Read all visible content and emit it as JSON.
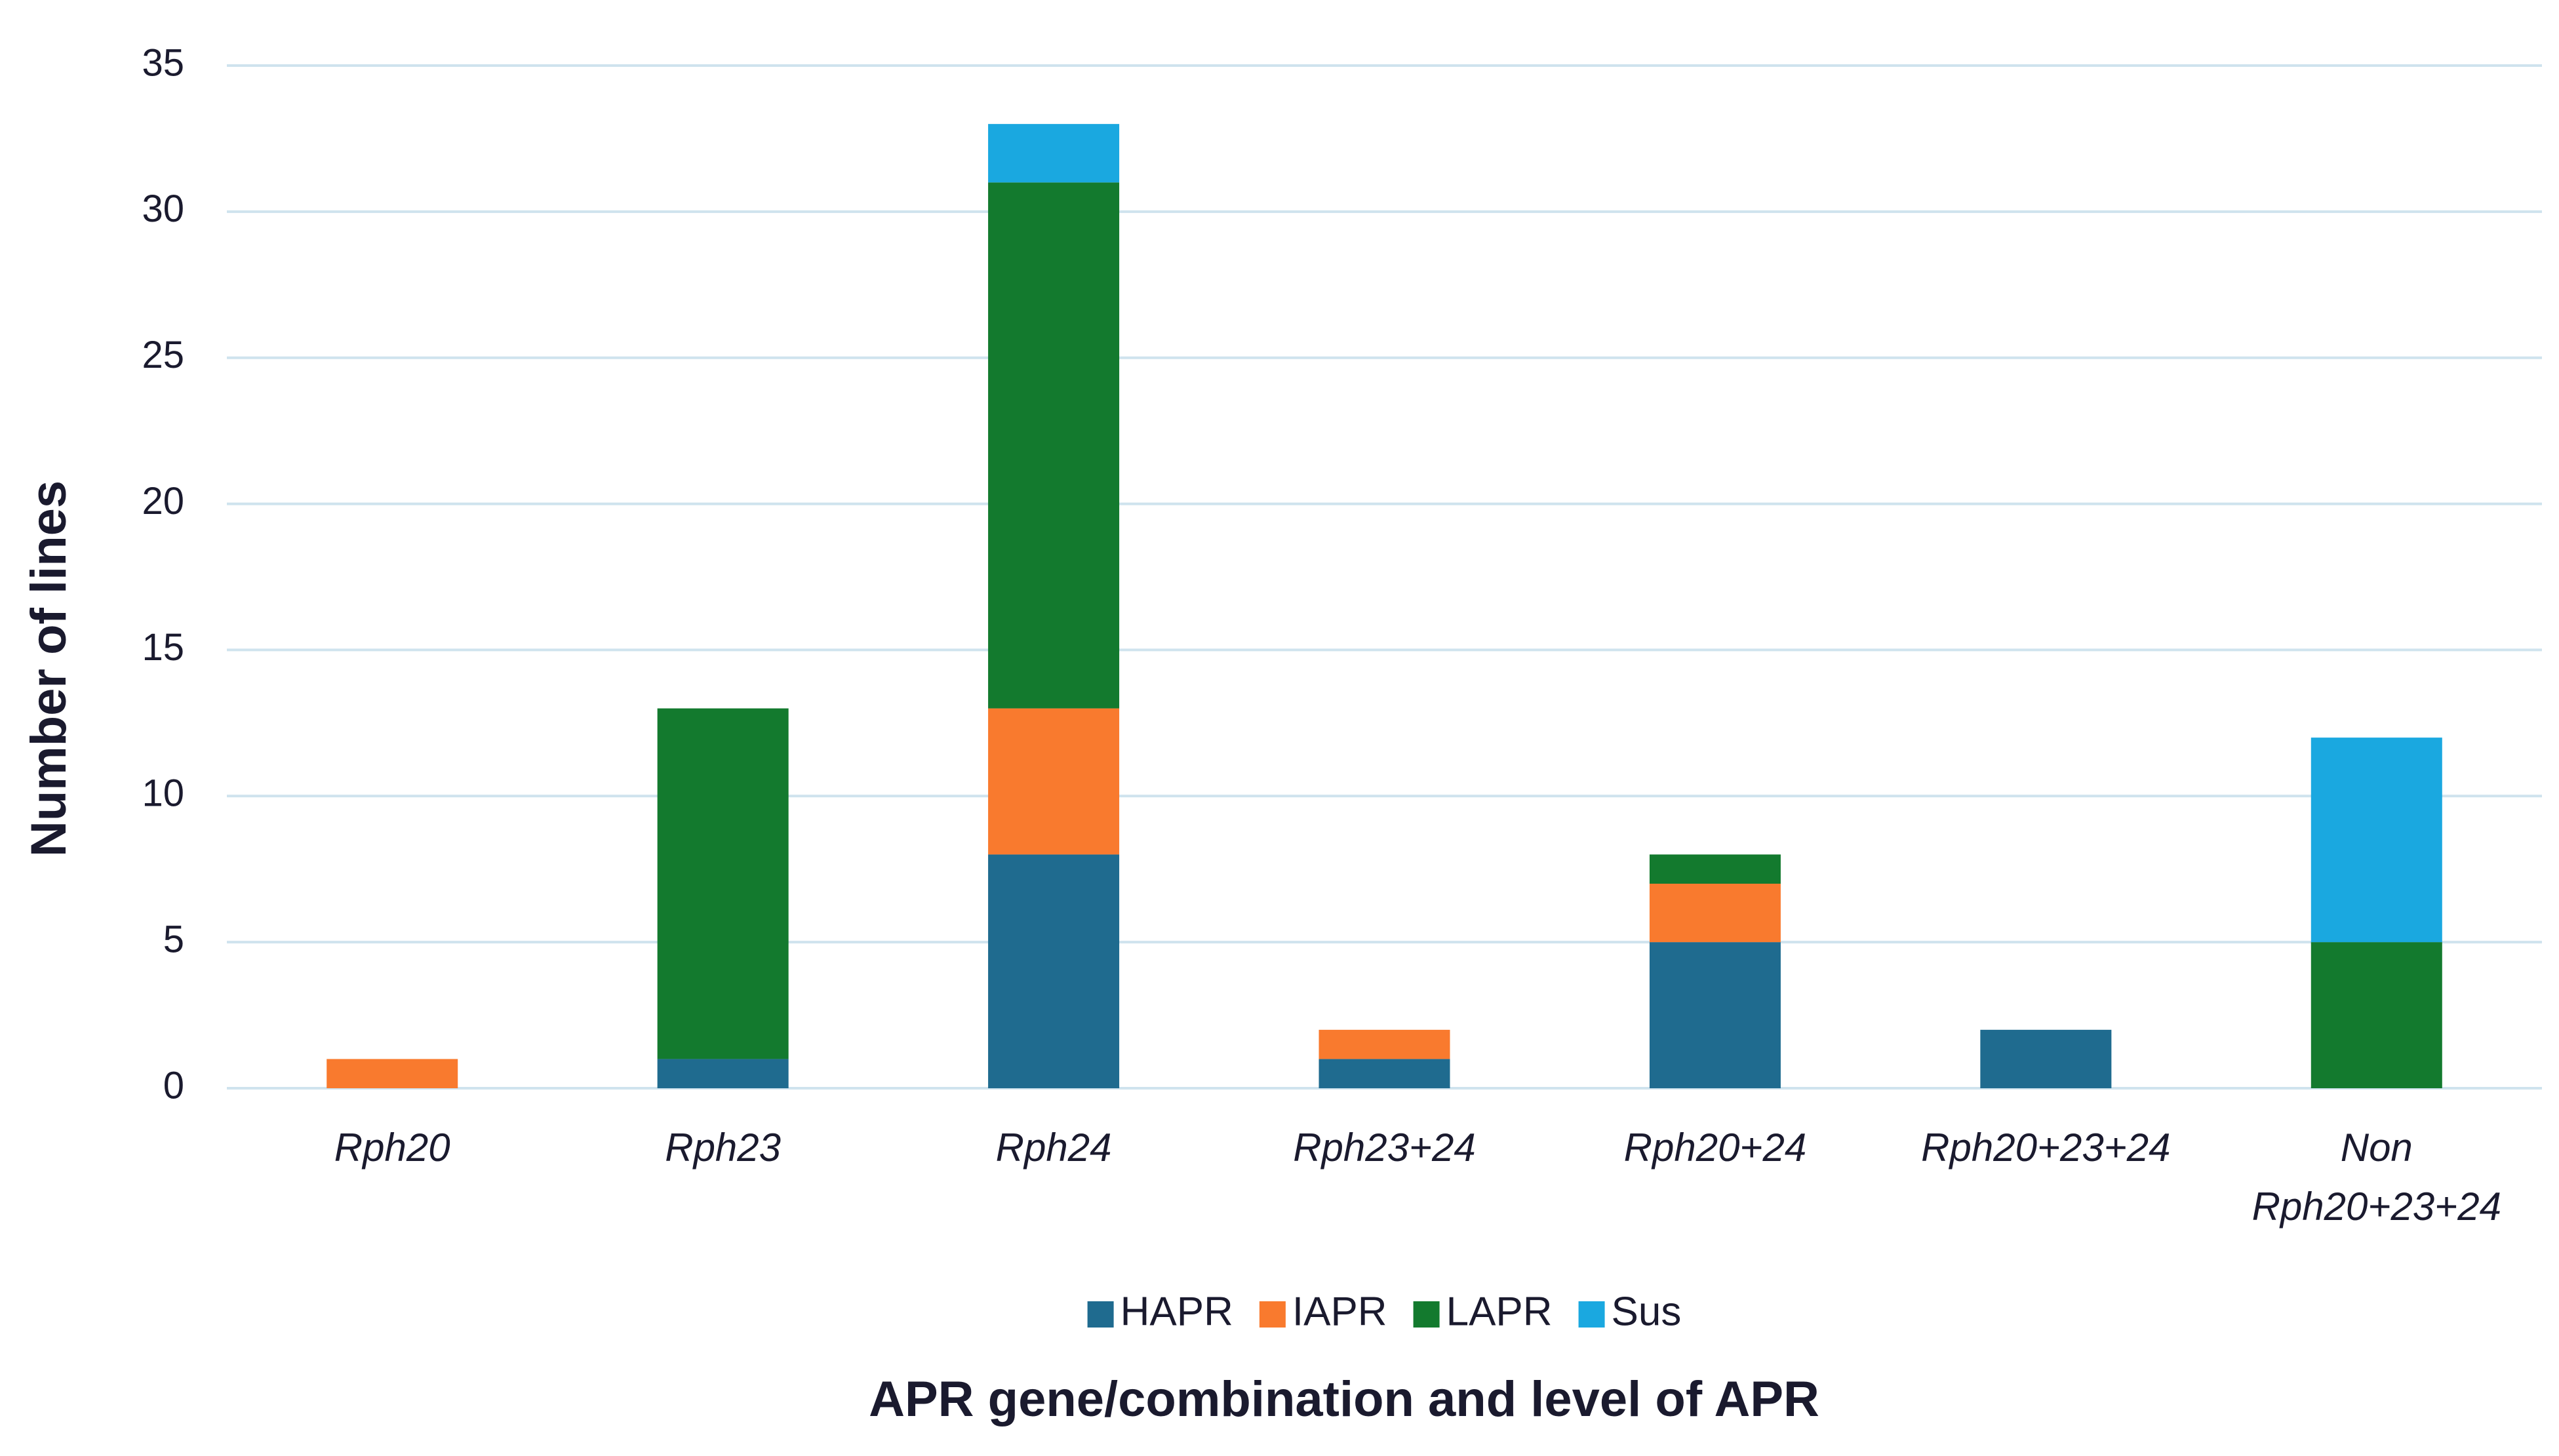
{
  "chart_data": {
    "type": "stacked_bar",
    "x_label": "APR gene/combination and level of APR",
    "y_label": "Number of lines",
    "categories": [
      "Rph20",
      "Rph23",
      "Rph24",
      "Rph23+24",
      "Rph20+24",
      "Rph20+23+24",
      "Non Rph20+23+24"
    ],
    "series": [
      {
        "name": "HAPR",
        "color": "#1f6b8f",
        "values": [
          0,
          1,
          8,
          1,
          5,
          2,
          0
        ]
      },
      {
        "name": "IAPR",
        "color": "#f97a2e",
        "values": [
          1,
          0,
          5,
          1,
          2,
          0,
          0
        ]
      },
      {
        "name": "LAPR",
        "color": "#137a2e",
        "values": [
          0,
          12,
          18,
          0,
          1,
          0,
          5
        ]
      },
      {
        "name": "Sus",
        "color": "#1aa8e0",
        "values": [
          0,
          0,
          2,
          0,
          0,
          0,
          7
        ]
      }
    ],
    "ylim": [
      0,
      35
    ],
    "yticks": [
      0,
      5,
      10,
      15,
      20,
      25,
      30,
      35
    ],
    "grid": true,
    "legend": "bottom"
  }
}
